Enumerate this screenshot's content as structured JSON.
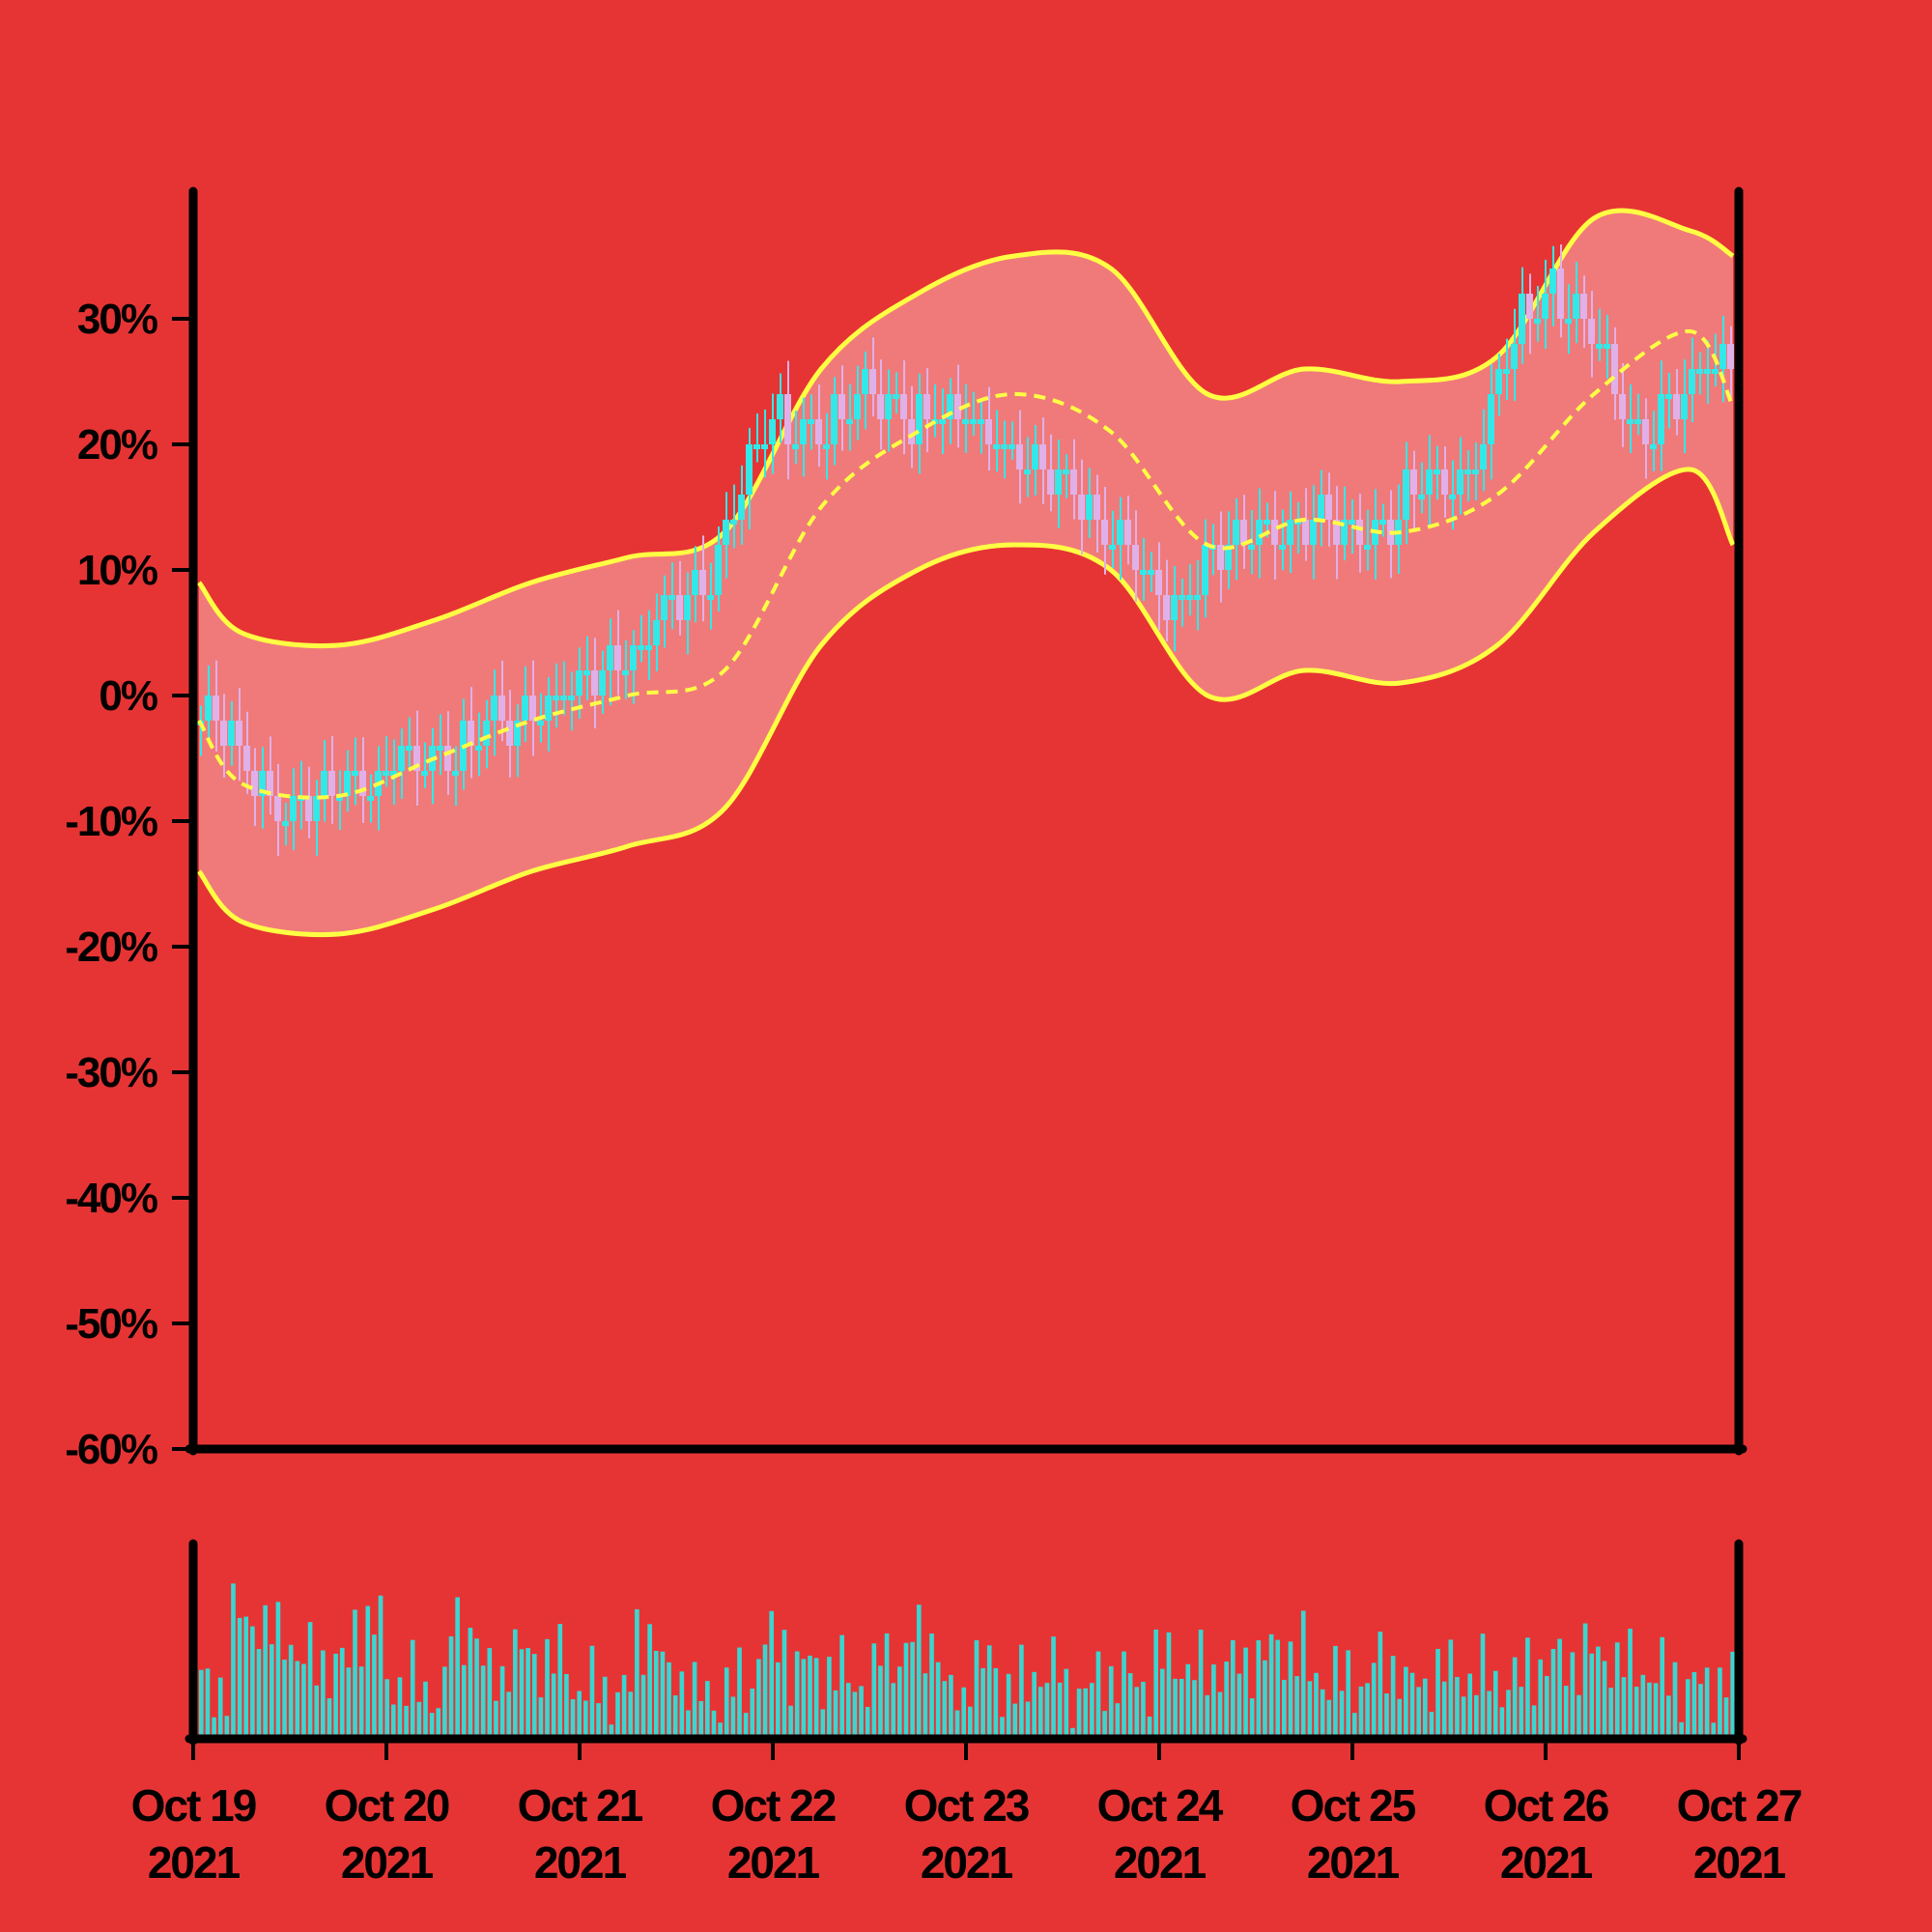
{
  "colors": {
    "background": "#e63434",
    "band_fill": "#f07a7a",
    "band_line": "#ffff44",
    "candle_up": "#33e8e8",
    "candle_down": "#e0b0e8",
    "volume": "#3ad6d0",
    "axis": "#000000"
  },
  "chart_data": [
    {
      "type": "candlestick",
      "title": "",
      "xlabel": "",
      "ylabel": "",
      "ylim": [
        -60,
        40
      ],
      "ytick_labels": [
        "30%",
        "20%",
        "10%",
        "0%",
        "-10%",
        "-20%",
        "-30%",
        "-40%",
        "-50%",
        "-60%"
      ],
      "ytick_values": [
        30,
        20,
        10,
        0,
        -10,
        -20,
        -30,
        -40,
        -50,
        -60
      ],
      "xlim": [
        "2021-10-19",
        "2021-10-27"
      ],
      "grid": false,
      "legend": "none",
      "indicator": "bollinger bands (upper, middle dashed, lower)",
      "series": [
        {
          "role": "close",
          "x": [
            "2021-10-19 00:00",
            "2021-10-19 12:00",
            "2021-10-20 00:00",
            "2021-10-20 12:00",
            "2021-10-21 00:00",
            "2021-10-21 12:00",
            "2021-10-22 00:00",
            "2021-10-22 12:00",
            "2021-10-23 00:00",
            "2021-10-23 12:00",
            "2021-10-24 00:00",
            "2021-10-24 12:00",
            "2021-10-25 00:00",
            "2021-10-25 12:00",
            "2021-10-26 00:00",
            "2021-10-26 12:00",
            "2021-10-27 00:00"
          ],
          "values": [
            -2,
            -9,
            -6,
            -3,
            1,
            7,
            21,
            23,
            22,
            17,
            8,
            13,
            13,
            17,
            33,
            22,
            28
          ]
        },
        {
          "role": "upper_band",
          "x": [
            "2021-10-19",
            "2021-10-19 06:00",
            "2021-10-19 18:00",
            "2021-10-20 06:00",
            "2021-10-20 18:00",
            "2021-10-21 06:00",
            "2021-10-21 18:00",
            "2021-10-22 06:00",
            "2021-10-22 18:00",
            "2021-10-23 06:00",
            "2021-10-23 18:00",
            "2021-10-24 06:00",
            "2021-10-24 18:00",
            "2021-10-25 06:00",
            "2021-10-25 18:00",
            "2021-10-26 06:00",
            "2021-10-26 18:00",
            "2021-10-27"
          ],
          "values": [
            9,
            5,
            4,
            6,
            9,
            11,
            13,
            26,
            32,
            35,
            34,
            24,
            26,
            25,
            27,
            38,
            37,
            35
          ]
        },
        {
          "role": "middle_band",
          "x": [
            "2021-10-19",
            "2021-10-19 06:00",
            "2021-10-19 18:00",
            "2021-10-20 06:00",
            "2021-10-20 18:00",
            "2021-10-21 06:00",
            "2021-10-21 18:00",
            "2021-10-22 06:00",
            "2021-10-22 18:00",
            "2021-10-23 06:00",
            "2021-10-23 18:00",
            "2021-10-24 06:00",
            "2021-10-24 18:00",
            "2021-10-25 06:00",
            "2021-10-25 18:00",
            "2021-10-26 06:00",
            "2021-10-26 18:00",
            "2021-10-27"
          ],
          "values": [
            -2,
            -7,
            -8,
            -5,
            -2,
            0,
            2,
            15,
            21,
            24,
            21,
            12,
            14,
            13,
            16,
            24,
            29,
            23
          ]
        },
        {
          "role": "lower_band",
          "x": [
            "2021-10-19",
            "2021-10-19 06:00",
            "2021-10-19 18:00",
            "2021-10-20 06:00",
            "2021-10-20 18:00",
            "2021-10-21 06:00",
            "2021-10-21 18:00",
            "2021-10-22 06:00",
            "2021-10-22 18:00",
            "2021-10-23 06:00",
            "2021-10-23 18:00",
            "2021-10-24 06:00",
            "2021-10-24 18:00",
            "2021-10-25 06:00",
            "2021-10-25 18:00",
            "2021-10-26 06:00",
            "2021-10-26 18:00",
            "2021-10-27"
          ],
          "values": [
            -14,
            -18,
            -19,
            -17,
            -14,
            -12,
            -9,
            4,
            10,
            12,
            10,
            0,
            2,
            1,
            4,
            13,
            18,
            12
          ]
        }
      ]
    },
    {
      "type": "bar",
      "role": "volume",
      "title": "",
      "xtick_labels": [
        {
          "line1": "Oct 19",
          "line2": "2021"
        },
        {
          "line1": "Oct 20",
          "line2": "2021"
        },
        {
          "line1": "Oct 21",
          "line2": "2021"
        },
        {
          "line1": "Oct 22",
          "line2": "2021"
        },
        {
          "line1": "Oct 23",
          "line2": "2021"
        },
        {
          "line1": "Oct 24",
          "line2": "2021"
        },
        {
          "line1": "Oct 25",
          "line2": "2021"
        },
        {
          "line1": "Oct 26",
          "line2": "2021"
        },
        {
          "line1": "Oct 27",
          "line2": "2021"
        }
      ],
      "values": [
        0.3,
        0.95,
        0.8,
        0.55,
        0.5,
        0.9,
        0.35,
        0.25,
        0.85,
        0.4,
        0.6,
        0.55,
        0.3,
        0.25,
        0.8,
        0.4,
        0.2,
        0.3,
        0.7,
        0.5,
        0.45,
        0.35,
        0.6,
        0.75,
        0.2,
        0.5,
        0.3,
        0.45,
        0.25,
        0.4,
        0.35,
        0.55,
        0.45,
        0.5,
        0.6,
        0.65,
        0.4,
        0.35,
        0.5,
        0.3,
        0.45,
        0.4,
        0.35,
        0.5,
        0.55,
        0.6,
        0.5,
        0.4,
        0.3,
        0.35
      ]
    }
  ]
}
